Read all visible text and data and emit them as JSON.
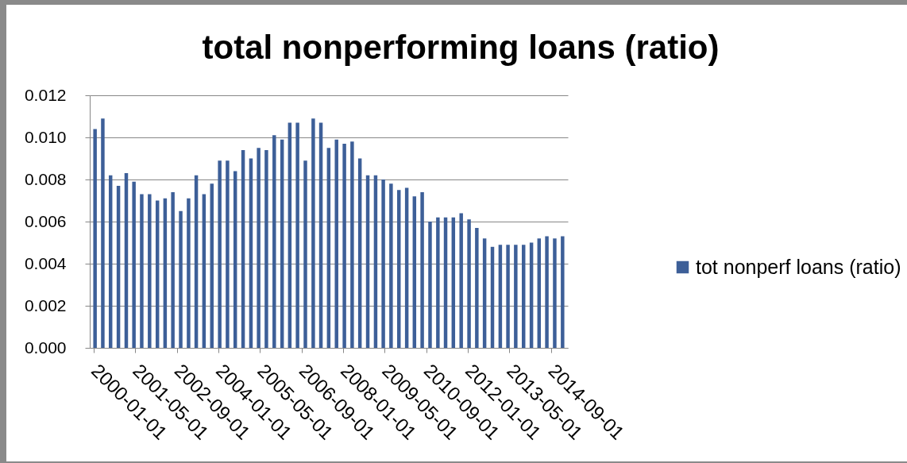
{
  "chart_data": {
    "type": "bar",
    "title": "total nonperforming loans (ratio)",
    "x": [
      "2000-01-01",
      "2000-04-01",
      "2000-07-01",
      "2000-10-01",
      "2001-01-01",
      "2001-04-01",
      "2001-07-01",
      "2001-10-01",
      "2002-01-01",
      "2002-04-01",
      "2002-07-01",
      "2002-10-01",
      "2003-01-01",
      "2003-04-01",
      "2003-07-01",
      "2003-10-01",
      "2004-01-01",
      "2004-04-01",
      "2004-07-01",
      "2004-10-01",
      "2005-01-01",
      "2005-04-01",
      "2005-07-01",
      "2005-10-01",
      "2006-01-01",
      "2006-04-01",
      "2006-07-01",
      "2006-10-01",
      "2007-01-01",
      "2007-04-01",
      "2007-07-01",
      "2007-10-01",
      "2008-01-01",
      "2008-04-01",
      "2008-07-01",
      "2008-10-01",
      "2009-01-01",
      "2009-04-01",
      "2009-07-01",
      "2009-10-01",
      "2010-01-01",
      "2010-04-01",
      "2010-07-01",
      "2010-10-01",
      "2011-01-01",
      "2011-04-01",
      "2011-07-01",
      "2011-10-01",
      "2012-01-01",
      "2012-04-01",
      "2012-07-01",
      "2012-10-01",
      "2013-01-01",
      "2013-04-01",
      "2013-07-01",
      "2013-10-01",
      "2014-01-01",
      "2014-04-01",
      "2014-07-01",
      "2014-10-01",
      "2015-01-01"
    ],
    "series": [
      {
        "name": "tot nonperf loans (ratio)",
        "color": "#3d5f98",
        "values": [
          0.0104,
          0.0109,
          0.0082,
          0.0077,
          0.0083,
          0.0079,
          0.0073,
          0.0073,
          0.007,
          0.0071,
          0.0074,
          0.0065,
          0.0071,
          0.0082,
          0.0073,
          0.0078,
          0.0089,
          0.0089,
          0.0084,
          0.0094,
          0.009,
          0.0095,
          0.0094,
          0.0101,
          0.0099,
          0.0107,
          0.0107,
          0.0089,
          0.0109,
          0.0107,
          0.0095,
          0.0099,
          0.0097,
          0.0098,
          0.009,
          0.0082,
          0.0082,
          0.008,
          0.0078,
          0.0075,
          0.0076,
          0.0072,
          0.0074,
          0.006,
          0.0062,
          0.0062,
          0.0062,
          0.0064,
          0.0061,
          0.0057,
          0.0052,
          0.0048,
          0.0049,
          0.0049,
          0.0049,
          0.0049,
          0.005,
          0.0052,
          0.0053,
          0.0052,
          0.0053
        ]
      }
    ],
    "xlim": [
      "2000-01-01",
      "2015-02-01"
    ],
    "xticks": [
      "2000-01-01",
      "2001-05-01",
      "2002-09-01",
      "2004-01-01",
      "2005-05-01",
      "2006-09-01",
      "2008-01-01",
      "2009-05-01",
      "2010-09-01",
      "2012-01-01",
      "2013-05-01",
      "2014-09-01"
    ],
    "ylim": [
      0,
      0.012
    ],
    "yticks": [
      {
        "value": 0,
        "label": "0.000"
      },
      {
        "value": 0.002,
        "label": "0.002"
      },
      {
        "value": 0.004,
        "label": "0.004"
      },
      {
        "value": 0.006,
        "label": "0.006"
      },
      {
        "value": 0.008,
        "label": "0.008"
      },
      {
        "value": 0.01,
        "label": "0.010"
      },
      {
        "value": 0.012,
        "label": "0.012"
      }
    ],
    "grid": "y",
    "legend": "right"
  }
}
